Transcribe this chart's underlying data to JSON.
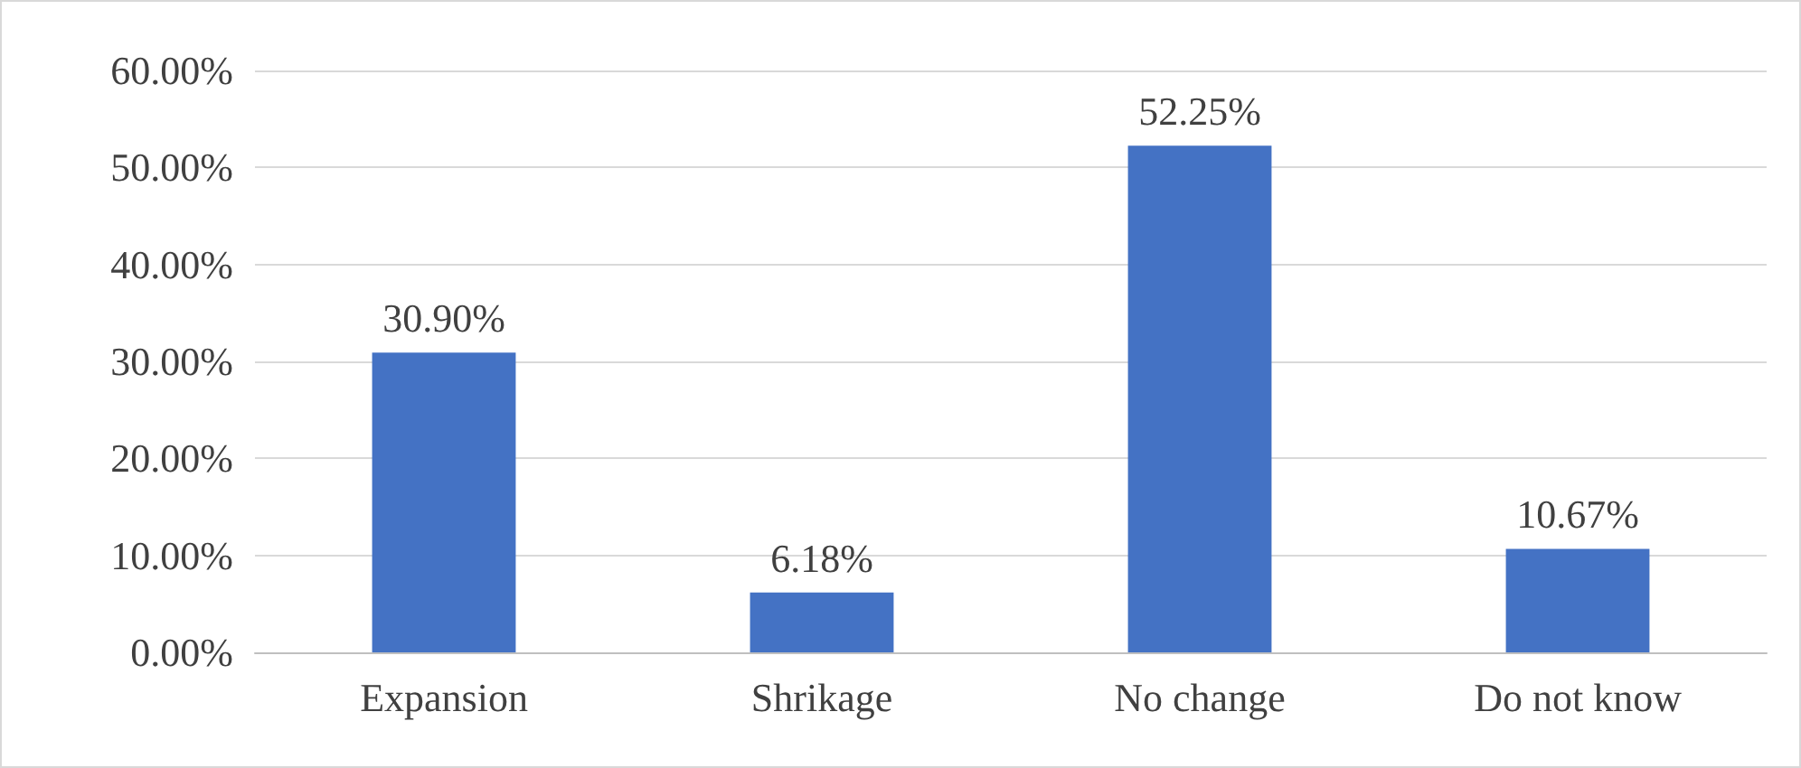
{
  "chart_data": {
    "type": "bar",
    "categories": [
      "Expansion",
      "Shrikage",
      "No change",
      "Do not know"
    ],
    "values": [
      30.9,
      6.18,
      52.25,
      10.67
    ],
    "value_labels": [
      "30.90%",
      "6.18%",
      "52.25%",
      "10.67%"
    ],
    "color": "#4472c4",
    "ylim": [
      0,
      60
    ],
    "yticks": [
      {
        "value": 0,
        "label": "0.00%"
      },
      {
        "value": 10,
        "label": "10.00%"
      },
      {
        "value": 20,
        "label": "20.00%"
      },
      {
        "value": 30,
        "label": "30.00%"
      },
      {
        "value": 40,
        "label": "40.00%"
      },
      {
        "value": 50,
        "label": "50.00%"
      },
      {
        "value": 60,
        "label": "60.00%"
      }
    ],
    "grid": "y"
  }
}
